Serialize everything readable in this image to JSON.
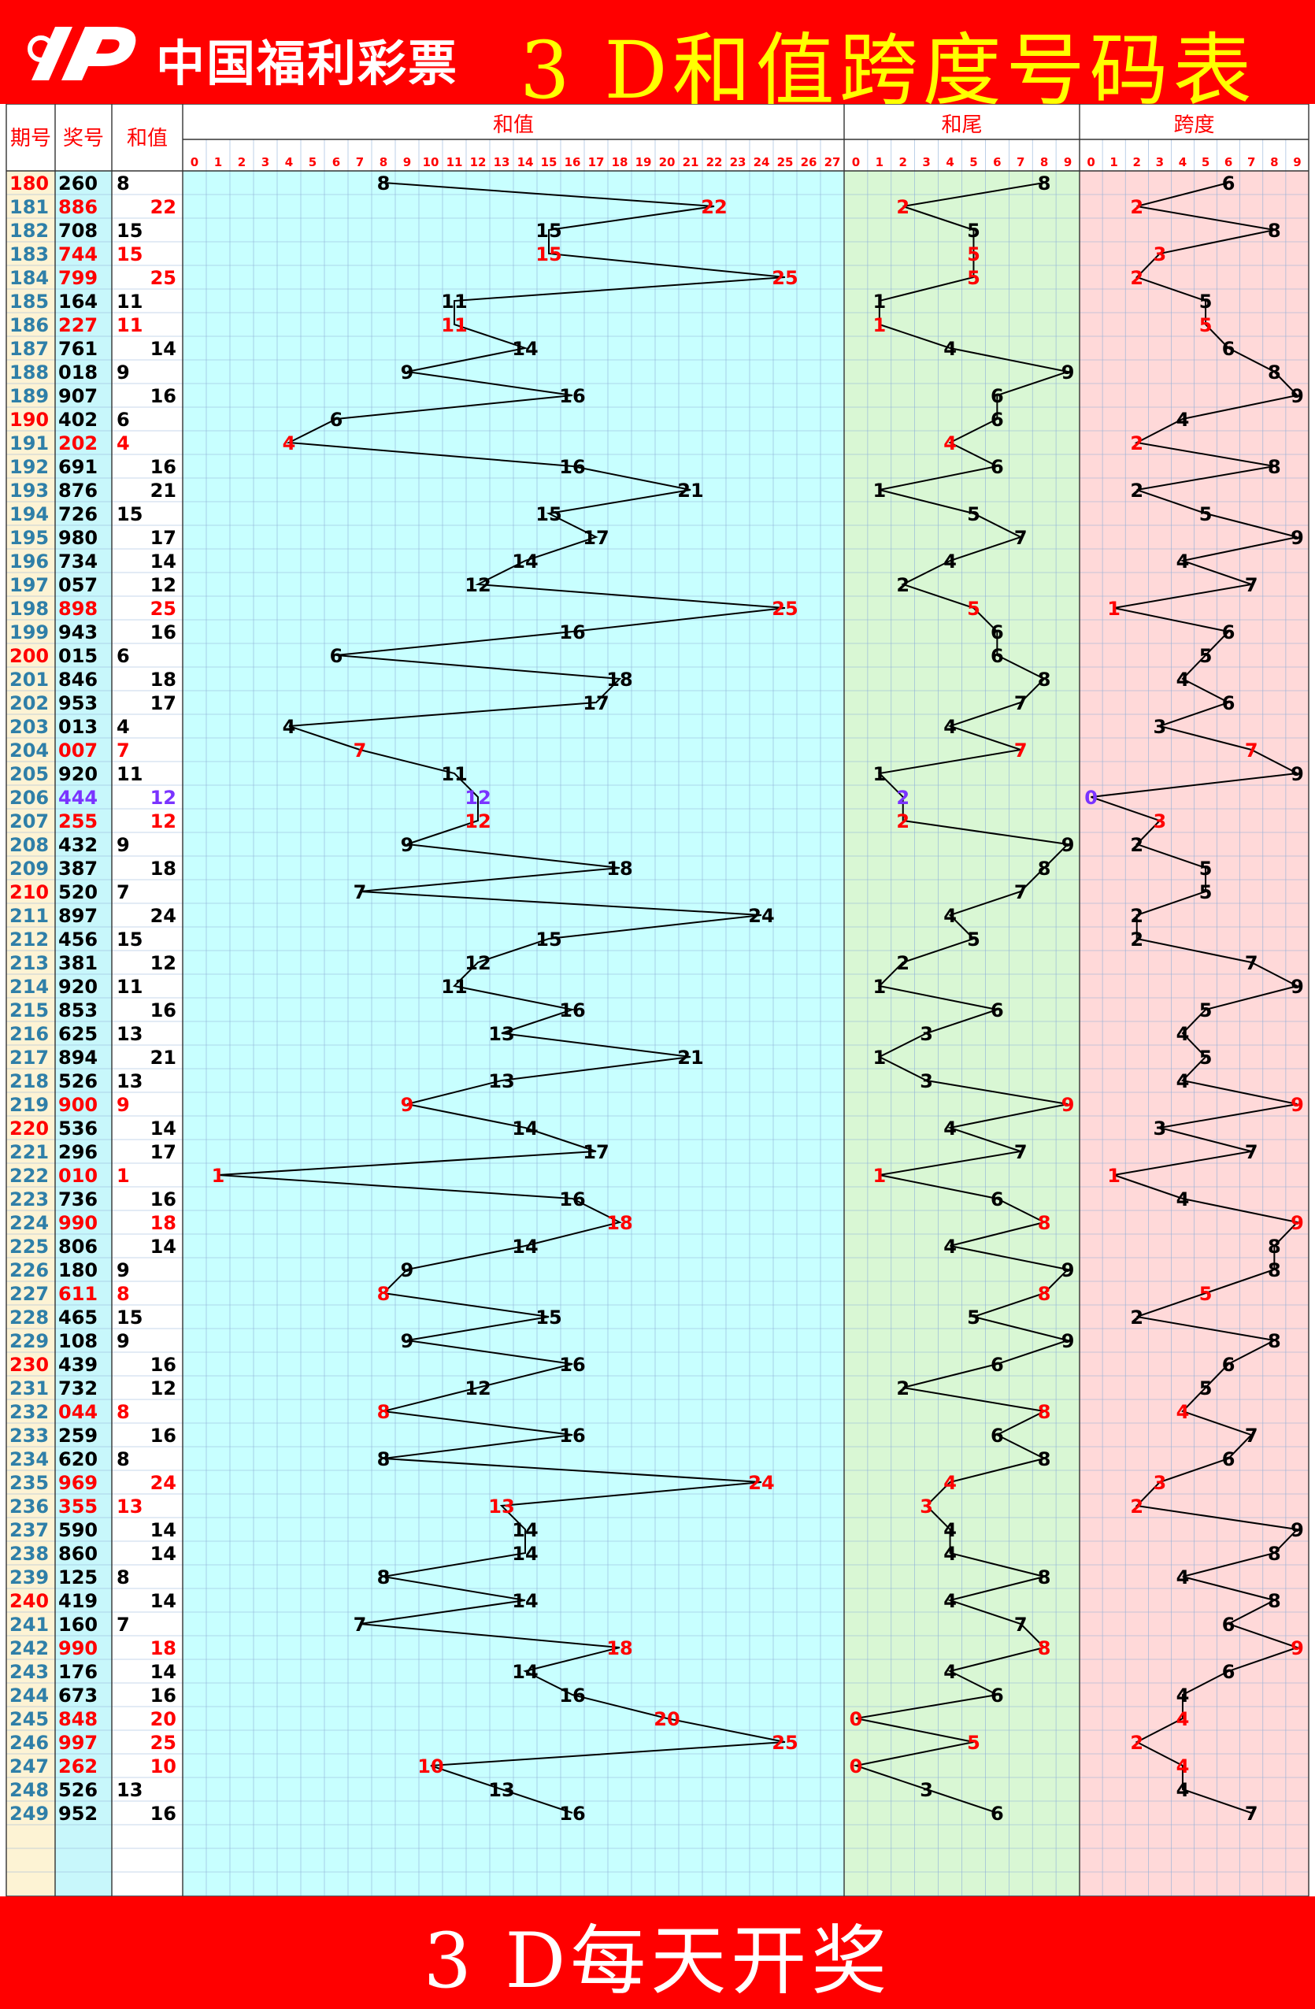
{
  "header": {
    "logo_text": "中国福利彩票",
    "title": "3 D和值跨度号码表"
  },
  "footer": {
    "text": "3 D每天开奖"
  },
  "colors": {
    "background": "#ff0000",
    "title": "#ffff00",
    "period_col": "#fdf3d4",
    "draw_col": "#c8f7fb",
    "sum_band": "#c8ffff",
    "tail_band": "#d9f7d4",
    "span_band": "#ffd9d9",
    "line": "#000000",
    "highlight": "#ff0000",
    "triple": "#7a33ff"
  },
  "chart_data": {
    "type": "table",
    "columns": {
      "period": "期号",
      "draw": "奖号",
      "sum": "和值"
    },
    "sections": {
      "sum": "和值",
      "tail": "和尾",
      "span": "跨度"
    },
    "sum_ticks": [
      "0",
      "1",
      "2",
      "3",
      "4",
      "5",
      "6",
      "7",
      "8",
      "9",
      "10",
      "11",
      "12",
      "13",
      "14",
      "15",
      "16",
      "17",
      "18",
      "19",
      "20",
      "21",
      "22",
      "23",
      "24",
      "25",
      "26",
      "27"
    ],
    "digit_ticks": [
      "0",
      "1",
      "2",
      "3",
      "4",
      "5",
      "6",
      "7",
      "8",
      "9"
    ],
    "rows": [
      {
        "p": "180",
        "d": "260",
        "s": "8",
        "t": "8",
        "sp": "6"
      },
      {
        "p": "181",
        "d": "886",
        "s": "22",
        "t": "2",
        "sp": "2"
      },
      {
        "p": "182",
        "d": "708",
        "s": "15",
        "t": "5",
        "sp": "8"
      },
      {
        "p": "183",
        "d": "744",
        "s": "15",
        "t": "5",
        "sp": "3"
      },
      {
        "p": "184",
        "d": "799",
        "s": "25",
        "t": "5",
        "sp": "2"
      },
      {
        "p": "185",
        "d": "164",
        "s": "11",
        "t": "1",
        "sp": "5"
      },
      {
        "p": "186",
        "d": "227",
        "s": "11",
        "t": "1",
        "sp": "5"
      },
      {
        "p": "187",
        "d": "761",
        "s": "14",
        "t": "4",
        "sp": "6"
      },
      {
        "p": "188",
        "d": "018",
        "s": "9",
        "t": "9",
        "sp": "8"
      },
      {
        "p": "189",
        "d": "907",
        "s": "16",
        "t": "6",
        "sp": "9"
      },
      {
        "p": "190",
        "d": "402",
        "s": "6",
        "t": "6",
        "sp": "4"
      },
      {
        "p": "191",
        "d": "202",
        "s": "4",
        "t": "4",
        "sp": "2"
      },
      {
        "p": "192",
        "d": "691",
        "s": "16",
        "t": "6",
        "sp": "8"
      },
      {
        "p": "193",
        "d": "876",
        "s": "21",
        "t": "1",
        "sp": "2"
      },
      {
        "p": "194",
        "d": "726",
        "s": "15",
        "t": "5",
        "sp": "5"
      },
      {
        "p": "195",
        "d": "980",
        "s": "17",
        "t": "7",
        "sp": "9"
      },
      {
        "p": "196",
        "d": "734",
        "s": "14",
        "t": "4",
        "sp": "4"
      },
      {
        "p": "197",
        "d": "057",
        "s": "12",
        "t": "2",
        "sp": "7"
      },
      {
        "p": "198",
        "d": "898",
        "s": "25",
        "t": "5",
        "sp": "1"
      },
      {
        "p": "199",
        "d": "943",
        "s": "16",
        "t": "6",
        "sp": "6"
      },
      {
        "p": "200",
        "d": "015",
        "s": "6",
        "t": "6",
        "sp": "5"
      },
      {
        "p": "201",
        "d": "846",
        "s": "18",
        "t": "8",
        "sp": "4"
      },
      {
        "p": "202",
        "d": "953",
        "s": "17",
        "t": "7",
        "sp": "6"
      },
      {
        "p": "203",
        "d": "013",
        "s": "4",
        "t": "4",
        "sp": "3"
      },
      {
        "p": "204",
        "d": "007",
        "s": "7",
        "t": "7",
        "sp": "7"
      },
      {
        "p": "205",
        "d": "920",
        "s": "11",
        "t": "1",
        "sp": "9"
      },
      {
        "p": "206",
        "d": "444",
        "s": "12",
        "t": "2",
        "sp": "0"
      },
      {
        "p": "207",
        "d": "255",
        "s": "12",
        "t": "2",
        "sp": "3"
      },
      {
        "p": "208",
        "d": "432",
        "s": "9",
        "t": "9",
        "sp": "2"
      },
      {
        "p": "209",
        "d": "387",
        "s": "18",
        "t": "8",
        "sp": "5"
      },
      {
        "p": "210",
        "d": "520",
        "s": "7",
        "t": "7",
        "sp": "5"
      },
      {
        "p": "211",
        "d": "897",
        "s": "24",
        "t": "4",
        "sp": "2"
      },
      {
        "p": "212",
        "d": "456",
        "s": "15",
        "t": "5",
        "sp": "2"
      },
      {
        "p": "213",
        "d": "381",
        "s": "12",
        "t": "2",
        "sp": "7"
      },
      {
        "p": "214",
        "d": "920",
        "s": "11",
        "t": "1",
        "sp": "9"
      },
      {
        "p": "215",
        "d": "853",
        "s": "16",
        "t": "6",
        "sp": "5"
      },
      {
        "p": "216",
        "d": "625",
        "s": "13",
        "t": "3",
        "sp": "4"
      },
      {
        "p": "217",
        "d": "894",
        "s": "21",
        "t": "1",
        "sp": "5"
      },
      {
        "p": "218",
        "d": "526",
        "s": "13",
        "t": "3",
        "sp": "4"
      },
      {
        "p": "219",
        "d": "900",
        "s": "9",
        "t": "9",
        "sp": "9"
      },
      {
        "p": "220",
        "d": "536",
        "s": "14",
        "t": "4",
        "sp": "3"
      },
      {
        "p": "221",
        "d": "296",
        "s": "17",
        "t": "7",
        "sp": "7"
      },
      {
        "p": "222",
        "d": "010",
        "s": "1",
        "t": "1",
        "sp": "1"
      },
      {
        "p": "223",
        "d": "736",
        "s": "16",
        "t": "6",
        "sp": "4"
      },
      {
        "p": "224",
        "d": "990",
        "s": "18",
        "t": "8",
        "sp": "9"
      },
      {
        "p": "225",
        "d": "806",
        "s": "14",
        "t": "4",
        "sp": "8"
      },
      {
        "p": "226",
        "d": "180",
        "s": "9",
        "t": "9",
        "sp": "8"
      },
      {
        "p": "227",
        "d": "611",
        "s": "8",
        "t": "8",
        "sp": "5"
      },
      {
        "p": "228",
        "d": "465",
        "s": "15",
        "t": "5",
        "sp": "2"
      },
      {
        "p": "229",
        "d": "108",
        "s": "9",
        "t": "9",
        "sp": "8"
      },
      {
        "p": "230",
        "d": "439",
        "s": "16",
        "t": "6",
        "sp": "6"
      },
      {
        "p": "231",
        "d": "732",
        "s": "12",
        "t": "2",
        "sp": "5"
      },
      {
        "p": "232",
        "d": "044",
        "s": "8",
        "t": "8",
        "sp": "4"
      },
      {
        "p": "233",
        "d": "259",
        "s": "16",
        "t": "6",
        "sp": "7"
      },
      {
        "p": "234",
        "d": "620",
        "s": "8",
        "t": "8",
        "sp": "6"
      },
      {
        "p": "235",
        "d": "969",
        "s": "24",
        "t": "4",
        "sp": "3"
      },
      {
        "p": "236",
        "d": "355",
        "s": "13",
        "t": "3",
        "sp": "2"
      },
      {
        "p": "237",
        "d": "590",
        "s": "14",
        "t": "4",
        "sp": "9"
      },
      {
        "p": "238",
        "d": "860",
        "s": "14",
        "t": "4",
        "sp": "8"
      },
      {
        "p": "239",
        "d": "125",
        "s": "8",
        "t": "8",
        "sp": "4"
      },
      {
        "p": "240",
        "d": "419",
        "s": "14",
        "t": "4",
        "sp": "8"
      },
      {
        "p": "241",
        "d": "160",
        "s": "7",
        "t": "7",
        "sp": "6"
      },
      {
        "p": "242",
        "d": "990",
        "s": "18",
        "t": "8",
        "sp": "9"
      },
      {
        "p": "243",
        "d": "176",
        "s": "14",
        "t": "4",
        "sp": "6"
      },
      {
        "p": "244",
        "d": "673",
        "s": "16",
        "t": "6",
        "sp": "4"
      },
      {
        "p": "245",
        "d": "848",
        "s": "20",
        "t": "0",
        "sp": "4"
      },
      {
        "p": "246",
        "d": "997",
        "s": "25",
        "t": "5",
        "sp": "2"
      },
      {
        "p": "247",
        "d": "262",
        "s": "10",
        "t": "0",
        "sp": "4"
      },
      {
        "p": "248",
        "d": "526",
        "s": "13",
        "t": "3",
        "sp": "4"
      },
      {
        "p": "249",
        "d": "952",
        "s": "16",
        "t": "6",
        "sp": "7"
      }
    ]
  }
}
